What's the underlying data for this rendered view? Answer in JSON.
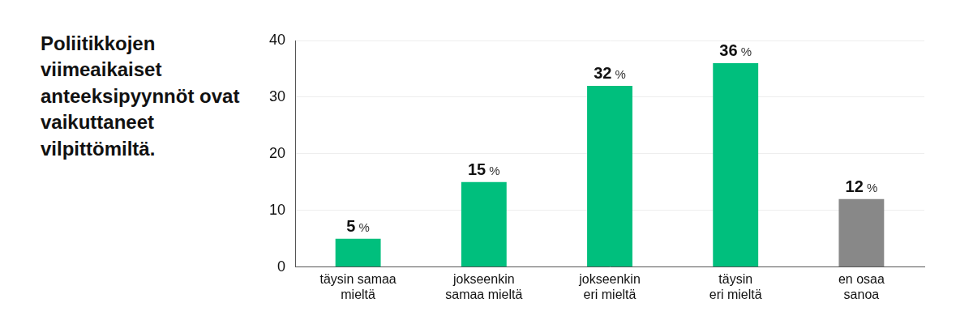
{
  "chart_data": {
    "type": "bar",
    "title": "Poliitikkojen viimeaikaiset anteeksipyynnöt ovat vaikuttaneet vilpittömiltä.",
    "categories": [
      [
        "täysin samaa",
        "mieltä"
      ],
      [
        "jokseenkin",
        "samaa mieltä"
      ],
      [
        "jokseenkin",
        "eri mieltä"
      ],
      [
        "täysin",
        "eri mieltä"
      ],
      [
        "en osaa",
        "sanoa"
      ]
    ],
    "values": [
      5,
      15,
      32,
      36,
      12
    ],
    "value_labels": [
      "5 %",
      "15 %",
      "32 %",
      "36 %",
      "12 %"
    ],
    "colors": [
      "#00bf7d",
      "#00bf7d",
      "#00bf7d",
      "#00bf7d",
      "#888888"
    ],
    "ylim": [
      0,
      40
    ],
    "yticks": [
      0,
      10,
      20,
      30,
      40
    ],
    "grid": true,
    "data_labels": true
  }
}
